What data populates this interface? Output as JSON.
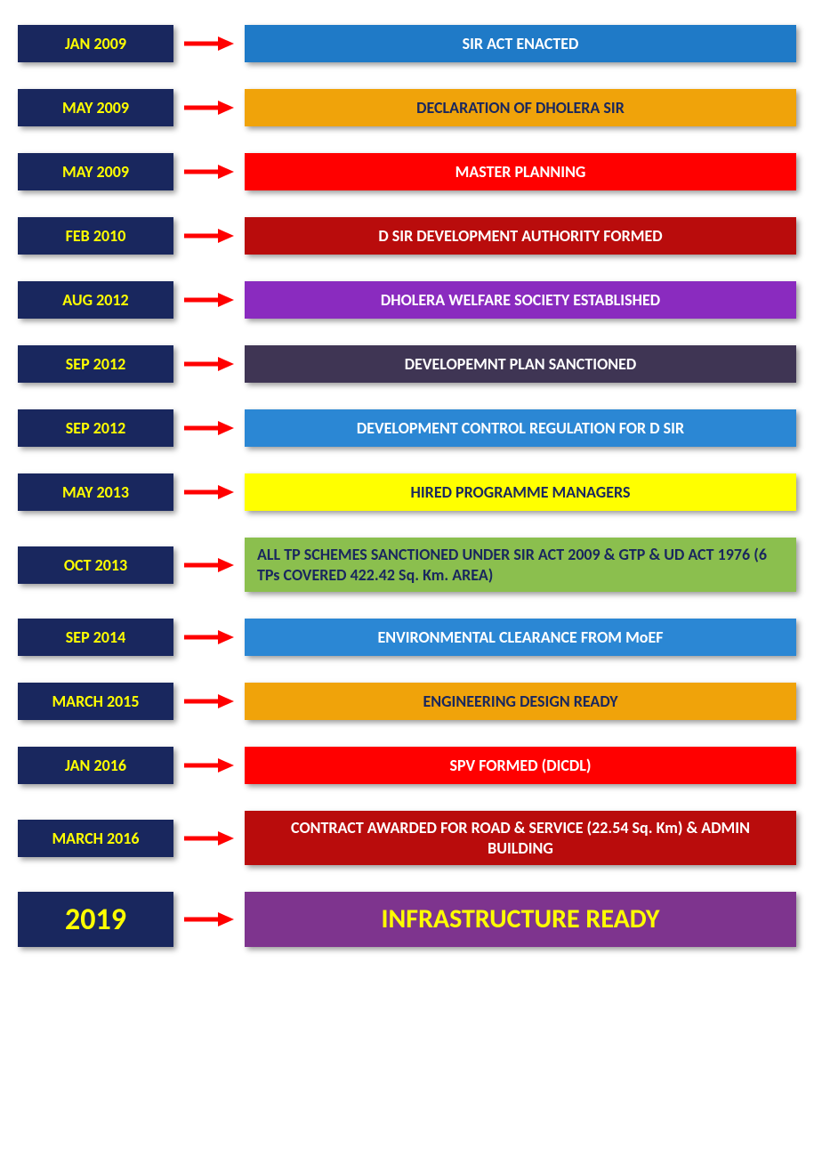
{
  "layout": {
    "date_box_bg": "#19275e",
    "date_text_color": "#ffff00",
    "date_fontsize_normal": 18,
    "date_fontsize_large": 34,
    "event_fontsize_normal": 18,
    "event_fontsize_large": 30,
    "arrow_color": "#ff0000",
    "shadow": "3px 3px 6px rgba(0,0,0,0.4)"
  },
  "timeline": [
    {
      "date": "JAN 2009",
      "event": "SIR ACT ENACTED",
      "bg": "#1f7ac7",
      "fg": "#ffffff",
      "align": "center"
    },
    {
      "date": "MAY 2009",
      "event": "DECLARATION OF DHOLERA SIR",
      "bg": "#f0a30a",
      "fg": "#19275e",
      "align": "center"
    },
    {
      "date": "MAY 2009",
      "event": "MASTER PLANNING",
      "bg": "#ff0000",
      "fg": "#ffffff",
      "align": "center"
    },
    {
      "date": "FEB 2010",
      "event": "D SIR DEVELOPMENT AUTHORITY FORMED",
      "bg": "#b90c0c",
      "fg": "#ffffff",
      "align": "center"
    },
    {
      "date": "AUG 2012",
      "event": "DHOLERA WELFARE SOCIETY ESTABLISHED",
      "bg": "#8a2bbf",
      "fg": "#ffffff",
      "align": "center"
    },
    {
      "date": "SEP 2012",
      "event": "DEVELOPEMNT PLAN SANCTIONED",
      "bg": "#3f3554",
      "fg": "#ffffff",
      "align": "center"
    },
    {
      "date": "SEP 2012",
      "event": "DEVELOPMENT CONTROL REGULATION FOR D SIR",
      "bg": "#2b87d4",
      "fg": "#ffffff",
      "align": "center"
    },
    {
      "date": "MAY 2013",
      "event": "HIRED PROGRAMME MANAGERS",
      "bg": "#ffff00",
      "fg": "#19275e",
      "align": "center"
    },
    {
      "date": "OCT 2013",
      "event": "ALL TP SCHEMES SANCTIONED UNDER SIR ACT 2009 & GTP & UD ACT 1976 (6 TPs COVERED 422.42 Sq. Km. AREA)",
      "bg": "#8bbf4e",
      "fg": "#19275e",
      "align": "left"
    },
    {
      "date": "SEP 2014",
      "event": "ENVIRONMENTAL CLEARANCE FROM MoEF",
      "bg": "#2b87d4",
      "fg": "#ffffff",
      "align": "center"
    },
    {
      "date": "MARCH 2015",
      "event": "ENGINEERING DESIGN READY",
      "bg": "#f0a30a",
      "fg": "#19275e",
      "align": "center"
    },
    {
      "date": "JAN 2016",
      "event": "SPV FORMED (DICDL)",
      "bg": "#ff0000",
      "fg": "#ffffff",
      "align": "center"
    },
    {
      "date": "MARCH 2016",
      "event": "CONTRACT AWARDED FOR ROAD & SERVICE (22.54 Sq. Km) & ADMIN BUILDING",
      "bg": "#b90c0c",
      "fg": "#ffffff",
      "align": "center"
    },
    {
      "date": "2019",
      "event": "INFRASTRUCTURE READY",
      "bg": "#7e348e",
      "fg": "#ffff00",
      "align": "center",
      "large": true
    }
  ]
}
